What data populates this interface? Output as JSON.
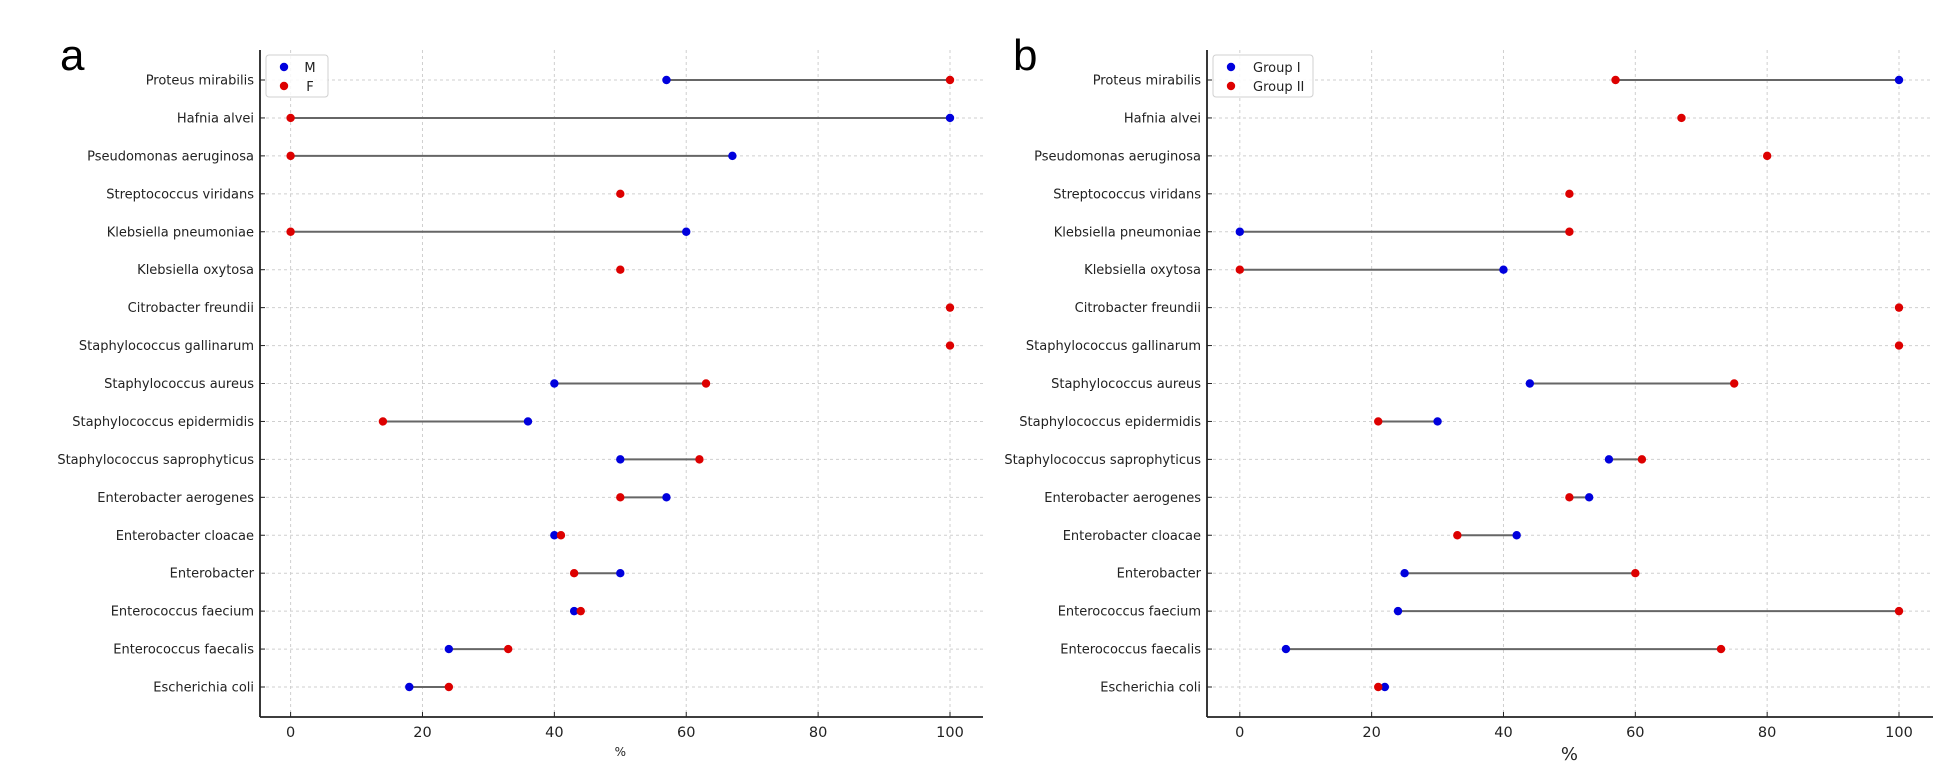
{
  "chart_data": [
    {
      "type": "dumbbell",
      "panel_label": "a",
      "title": "",
      "xlabel": "%",
      "ylabel": "",
      "xlim": [
        -5,
        105
      ],
      "xticks": [
        "0",
        "20",
        "40",
        "60",
        "80",
        "100"
      ],
      "grid": true,
      "legend_position": "top-left",
      "categories": [
        "Proteus mirabilis",
        "Hafnia alvei",
        "Pseudomonas aeruginosa",
        "Streptococcus viridans",
        "Klebsiella pneumoniae",
        "Klebsiella oxytosa",
        "Citrobacter freundii",
        "Staphylococcus gallinarum",
        "Staphylococcus aureus",
        "Staphylococcus epidermidis",
        "Staphylococcus saprophyticus",
        "Enterobacter aerogenes",
        "Enterobacter cloacae",
        "Enterobacter",
        "Enterococcus faecium",
        "Enterococcus faecalis",
        "Escherichia coli"
      ],
      "series": [
        {
          "name": "M",
          "color": "#0000dd",
          "values": [
            57,
            100,
            67,
            null,
            60,
            null,
            null,
            null,
            40,
            36,
            50,
            57,
            40,
            50,
            43,
            24,
            18
          ]
        },
        {
          "name": "F",
          "color": "#dd0000",
          "values": [
            100,
            0,
            0,
            50,
            0,
            50,
            100,
            100,
            63,
            14,
            62,
            50,
            41,
            43,
            44,
            33,
            24
          ]
        }
      ]
    },
    {
      "type": "dumbbell",
      "panel_label": "b",
      "title": "",
      "xlabel": "%",
      "ylabel": "",
      "xlim": [
        -5,
        105
      ],
      "xticks": [
        "0",
        "20",
        "40",
        "60",
        "80",
        "100"
      ],
      "grid": true,
      "legend_position": "top-left",
      "categories": [
        "Proteus mirabilis",
        "Hafnia alvei",
        "Pseudomonas aeruginosa",
        "Streptococcus viridans",
        "Klebsiella pneumoniae",
        "Klebsiella oxytosa",
        "Citrobacter freundii",
        "Staphylococcus gallinarum",
        "Staphylococcus aureus",
        "Staphylococcus epidermidis",
        "Staphylococcus saprophyticus",
        "Enterobacter aerogenes",
        "Enterobacter cloacae",
        "Enterobacter",
        "Enterococcus faecium",
        "Enterococcus faecalis",
        "Escherichia coli"
      ],
      "series": [
        {
          "name": "Group I",
          "color": "#0000dd",
          "values": [
            100,
            null,
            null,
            null,
            0,
            40,
            null,
            null,
            44,
            30,
            56,
            53,
            42,
            25,
            24,
            7,
            22
          ]
        },
        {
          "name": "Group II",
          "color": "#dd0000",
          "values": [
            57,
            67,
            80,
            50,
            50,
            0,
            100,
            100,
            75,
            21,
            61,
            50,
            33,
            60,
            100,
            73,
            21
          ]
        }
      ]
    }
  ],
  "connector_color": "#666666"
}
